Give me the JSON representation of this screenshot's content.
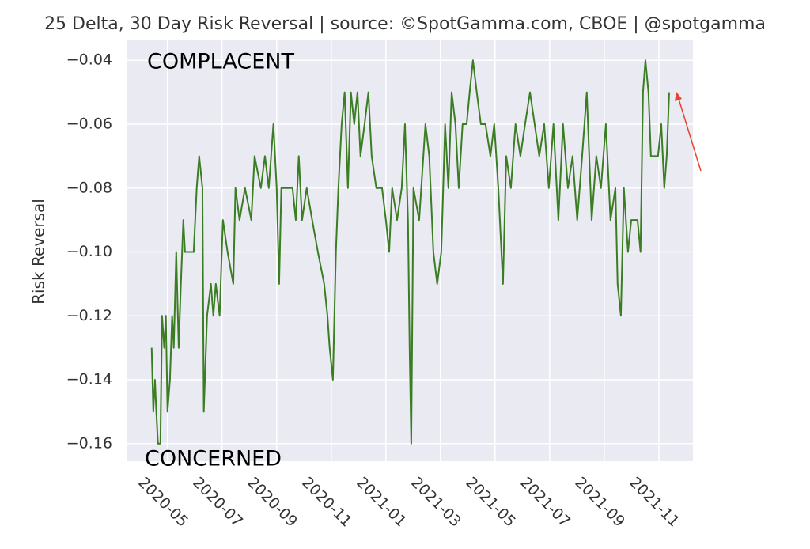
{
  "chart_data": {
    "type": "line",
    "title": "25 Delta, 30 Day Risk Reversal | source: ©SpotGamma.com, CBOE | @spotgamma",
    "y_label": "Risk Reversal",
    "annotations": [
      "COMPLACENT",
      "CONCERNED"
    ],
    "color": "#3a7d22",
    "grid": true,
    "xlim": [
      -1.5,
      19.25
    ],
    "ylim": [
      -0.1655,
      -0.0335
    ],
    "xticks": [
      {
        "value": 0,
        "label": "2020-05"
      },
      {
        "value": 2,
        "label": "2020-07"
      },
      {
        "value": 4,
        "label": "2020-09"
      },
      {
        "value": 6,
        "label": "2020-11"
      },
      {
        "value": 8,
        "label": "2021-01"
      },
      {
        "value": 10,
        "label": "2021-03"
      },
      {
        "value": 12,
        "label": "2021-05"
      },
      {
        "value": 14,
        "label": "2021-07"
      },
      {
        "value": 16,
        "label": "2021-09"
      },
      {
        "value": 18,
        "label": "2021-11"
      }
    ],
    "yticks": [
      {
        "value": -0.16,
        "label": "−0.16"
      },
      {
        "value": -0.14,
        "label": "−0.14"
      },
      {
        "value": -0.12,
        "label": "−0.12"
      },
      {
        "value": -0.1,
        "label": "−0.10"
      },
      {
        "value": -0.08,
        "label": "−0.08"
      },
      {
        "value": -0.06,
        "label": "−0.06"
      },
      {
        "value": -0.04,
        "label": "−0.04"
      }
    ],
    "x": [
      -0.58,
      -0.52,
      -0.46,
      -0.41,
      -0.35,
      -0.26,
      -0.2,
      -0.12,
      -0.06,
      0,
      0.09,
      0.17,
      0.23,
      0.32,
      0.41,
      0.49,
      0.58,
      0.64,
      0.96,
      1.07,
      1.16,
      1.28,
      1.33,
      1.45,
      1.59,
      1.68,
      1.77,
      1.91,
      2.03,
      2.2,
      2.41,
      2.49,
      2.64,
      2.84,
      3.07,
      3.19,
      3.42,
      3.57,
      3.71,
      3.88,
      4.0,
      4.09,
      4.17,
      4.58,
      4.7,
      4.81,
      4.93,
      5.1,
      5.3,
      5.51,
      5.74,
      5.86,
      5.94,
      6.06,
      6.17,
      6.26,
      6.38,
      6.49,
      6.61,
      6.72,
      6.84,
      6.96,
      7.07,
      7.22,
      7.36,
      7.48,
      7.65,
      7.86,
      8.0,
      8.12,
      8.23,
      8.41,
      8.58,
      8.7,
      8.81,
      8.87,
      8.93,
      9.01,
      9.22,
      9.45,
      9.59,
      9.74,
      9.88,
      10.03,
      10.17,
      10.29,
      10.41,
      10.55,
      10.67,
      10.81,
      10.96,
      11.07,
      11.19,
      11.33,
      11.48,
      11.65,
      11.83,
      11.97,
      12.12,
      12.29,
      12.41,
      12.58,
      12.75,
      12.93,
      13.1,
      13.28,
      13.45,
      13.62,
      13.8,
      13.97,
      14.14,
      14.32,
      14.49,
      14.67,
      14.84,
      15.01,
      15.19,
      15.36,
      15.54,
      15.71,
      15.88,
      16.06,
      16.23,
      16.41,
      16.49,
      16.61,
      16.72,
      16.87,
      16.99,
      17.22,
      17.33,
      17.42,
      17.51,
      17.62,
      17.71,
      17.97,
      18.09,
      18.2,
      18.29,
      18.38
    ],
    "values": [
      -0.13,
      -0.15,
      -0.14,
      -0.15,
      -0.16,
      -0.16,
      -0.12,
      -0.13,
      -0.12,
      -0.15,
      -0.14,
      -0.12,
      -0.13,
      -0.1,
      -0.13,
      -0.11,
      -0.09,
      -0.1,
      -0.1,
      -0.08,
      -0.07,
      -0.08,
      -0.15,
      -0.12,
      -0.11,
      -0.12,
      -0.11,
      -0.12,
      -0.09,
      -0.1,
      -0.11,
      -0.08,
      -0.09,
      -0.08,
      -0.09,
      -0.07,
      -0.08,
      -0.07,
      -0.08,
      -0.06,
      -0.08,
      -0.11,
      -0.08,
      -0.08,
      -0.09,
      -0.07,
      -0.09,
      -0.08,
      -0.09,
      -0.1,
      -0.11,
      -0.12,
      -0.13,
      -0.14,
      -0.1,
      -0.08,
      -0.06,
      -0.05,
      -0.08,
      -0.05,
      -0.06,
      -0.05,
      -0.07,
      -0.06,
      -0.05,
      -0.07,
      -0.08,
      -0.08,
      -0.09,
      -0.1,
      -0.08,
      -0.09,
      -0.08,
      -0.06,
      -0.09,
      -0.13,
      -0.16,
      -0.08,
      -0.09,
      -0.06,
      -0.07,
      -0.1,
      -0.11,
      -0.1,
      -0.06,
      -0.08,
      -0.05,
      -0.06,
      -0.08,
      -0.06,
      -0.06,
      -0.05,
      -0.04,
      -0.05,
      -0.06,
      -0.06,
      -0.07,
      -0.06,
      -0.08,
      -0.11,
      -0.07,
      -0.08,
      -0.06,
      -0.07,
      -0.06,
      -0.05,
      -0.06,
      -0.07,
      -0.06,
      -0.08,
      -0.06,
      -0.09,
      -0.06,
      -0.08,
      -0.07,
      -0.09,
      -0.07,
      -0.05,
      -0.09,
      -0.07,
      -0.08,
      -0.06,
      -0.09,
      -0.08,
      -0.11,
      -0.12,
      -0.08,
      -0.1,
      -0.09,
      -0.09,
      -0.1,
      -0.05,
      -0.04,
      -0.05,
      -0.07,
      -0.07,
      -0.06,
      -0.08,
      -0.07,
      -0.05
    ]
  }
}
